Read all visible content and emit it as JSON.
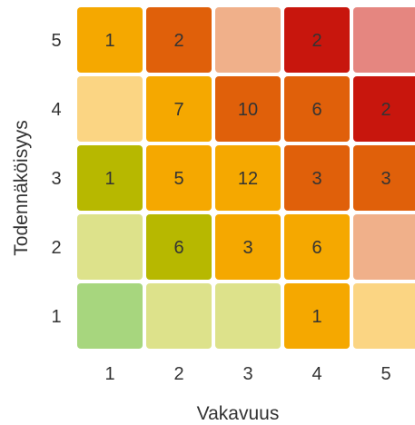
{
  "chart_data": {
    "type": "heatmap",
    "xlabel": "Vakavuus",
    "ylabel": "Todennäköisyys",
    "x_ticks": [
      "1",
      "2",
      "3",
      "4",
      "5"
    ],
    "y_ticks": [
      "5",
      "4",
      "3",
      "2",
      "1"
    ],
    "grid": false,
    "legend": "none",
    "rows": [
      {
        "probability": "5",
        "cells": [
          {
            "severity": "1",
            "count": "1",
            "color": "#f5a800"
          },
          {
            "severity": "2",
            "count": "2",
            "color": "#e0600a"
          },
          {
            "severity": "3",
            "count": "",
            "color": "#f0b08a"
          },
          {
            "severity": "4",
            "count": "2",
            "color": "#c8160d"
          },
          {
            "severity": "5",
            "count": "",
            "color": "#e58680"
          }
        ]
      },
      {
        "probability": "4",
        "cells": [
          {
            "severity": "1",
            "count": "",
            "color": "#fbd583"
          },
          {
            "severity": "2",
            "count": "7",
            "color": "#f5a800"
          },
          {
            "severity": "3",
            "count": "10",
            "color": "#e0600a"
          },
          {
            "severity": "4",
            "count": "6",
            "color": "#e0600a"
          },
          {
            "severity": "5",
            "count": "2",
            "color": "#c8160d"
          }
        ]
      },
      {
        "probability": "3",
        "cells": [
          {
            "severity": "1",
            "count": "1",
            "color": "#b7b800"
          },
          {
            "severity": "2",
            "count": "5",
            "color": "#f5a800"
          },
          {
            "severity": "3",
            "count": "12",
            "color": "#f5a800"
          },
          {
            "severity": "4",
            "count": "3",
            "color": "#e0600a"
          },
          {
            "severity": "5",
            "count": "3",
            "color": "#e0600a"
          }
        ]
      },
      {
        "probability": "2",
        "cells": [
          {
            "severity": "1",
            "count": "",
            "color": "#dde28b"
          },
          {
            "severity": "2",
            "count": "6",
            "color": "#b7b800"
          },
          {
            "severity": "3",
            "count": "3",
            "color": "#f5a800"
          },
          {
            "severity": "4",
            "count": "6",
            "color": "#f5a800"
          },
          {
            "severity": "5",
            "count": "",
            "color": "#f0b08a"
          }
        ]
      },
      {
        "probability": "1",
        "cells": [
          {
            "severity": "1",
            "count": "",
            "color": "#a7d67e"
          },
          {
            "severity": "2",
            "count": "",
            "color": "#dde28b"
          },
          {
            "severity": "3",
            "count": "",
            "color": "#dde28b"
          },
          {
            "severity": "4",
            "count": "1",
            "color": "#f5a800"
          },
          {
            "severity": "5",
            "count": "",
            "color": "#fbd583"
          }
        ]
      }
    ]
  }
}
